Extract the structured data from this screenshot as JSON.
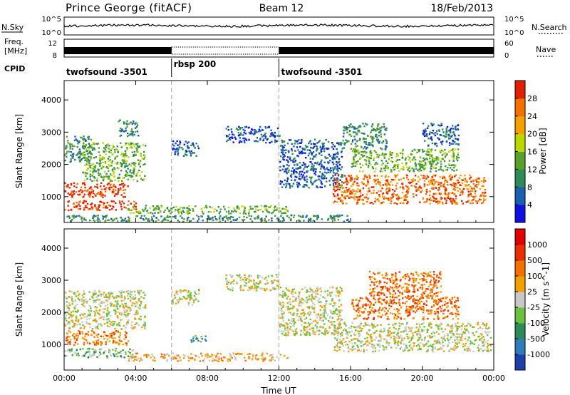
{
  "header": {
    "station": "Prince George (fitACF)",
    "beam": "Beam 12",
    "date": "18/Feb/2013"
  },
  "top_panels": {
    "nsky_label": "N.Sky",
    "nsky_ticks": [
      "10^5",
      "10^0"
    ],
    "nsearch_label": "N.Search",
    "nsearch_ticks": [
      "10^5",
      "10^0"
    ],
    "freq_label_1": "Freq.",
    "freq_label_2": "[MHz]",
    "freq_ticks": [
      "12",
      "8"
    ],
    "nave_label": "Nave",
    "nave_ticks": [
      "60",
      "0"
    ],
    "cpid_label": "CPID",
    "cpid_segments": [
      {
        "name": "twofsound -3501",
        "start_h": 0,
        "end_h": 6
      },
      {
        "name": "rbsp 200",
        "start_h": 6,
        "end_h": 12
      },
      {
        "name": "twofsound -3501",
        "start_h": 12,
        "end_h": 24
      }
    ]
  },
  "chart_data": [
    {
      "type": "heatmap",
      "title": "",
      "ylabel": "Slant Range [km]",
      "xlabel": "",
      "ylim": [
        200,
        4600
      ],
      "xlim_hours": [
        0,
        24
      ],
      "y_ticks": [
        "1000",
        "2000",
        "3000",
        "4000"
      ],
      "x_tick_hours": [
        0,
        4,
        8,
        12,
        16,
        20,
        24
      ],
      "colorbar": {
        "label": "Power [dB]",
        "ticks": [
          "4",
          "8",
          "12",
          "16",
          "20",
          "24",
          "28"
        ],
        "colors": [
          "#1010e0",
          "#1a5fb0",
          "#2e8b57",
          "#5aa02c",
          "#bdd800",
          "#f4a000",
          "#f07000",
          "#e02000"
        ]
      },
      "echo_regions": [
        {
          "t0": 0.0,
          "t1": 3.6,
          "r0": 1000,
          "r1": 1450,
          "level": 7
        },
        {
          "t0": 0.0,
          "t1": 4.0,
          "r0": 600,
          "r1": 900,
          "level": 7
        },
        {
          "t0": 0.0,
          "t1": 1.5,
          "r0": 2100,
          "r1": 2900,
          "level": 2
        },
        {
          "t0": 1.0,
          "t1": 4.5,
          "r0": 1500,
          "r1": 2700,
          "level": 3
        },
        {
          "t0": 3.0,
          "t1": 4.2,
          "r0": 2900,
          "r1": 3400,
          "level": 2
        },
        {
          "t0": 3.5,
          "t1": 12.5,
          "r0": 500,
          "r1": 750,
          "level": 3
        },
        {
          "t0": 0.0,
          "t1": 16.0,
          "r0": 250,
          "r1": 450,
          "level": 2
        },
        {
          "t0": 6.0,
          "t1": 7.5,
          "r0": 2250,
          "r1": 2750,
          "level": 1
        },
        {
          "t0": 9.0,
          "t1": 12.0,
          "r0": 2700,
          "r1": 3200,
          "level": 1
        },
        {
          "t0": 12.0,
          "t1": 15.5,
          "r0": 1300,
          "r1": 2800,
          "level": 1
        },
        {
          "t0": 15.0,
          "t1": 23.5,
          "r0": 800,
          "r1": 1700,
          "level": 6
        },
        {
          "t0": 16.0,
          "t1": 22.0,
          "r0": 1800,
          "r1": 2500,
          "level": 3
        },
        {
          "t0": 15.5,
          "t1": 18.0,
          "r0": 2500,
          "r1": 3300,
          "level": 2
        },
        {
          "t0": 20.0,
          "t1": 22.0,
          "r0": 2600,
          "r1": 3300,
          "level": 1
        }
      ]
    },
    {
      "type": "heatmap",
      "title": "",
      "ylabel": "Slant Range [km]",
      "xlabel": "Time UT",
      "ylim": [
        200,
        4600
      ],
      "xlim_hours": [
        0,
        24
      ],
      "y_ticks": [
        "1000",
        "2000",
        "3000",
        "4000"
      ],
      "x_tick_labels": [
        "00:00",
        "04:00",
        "08:00",
        "12:00",
        "16:00",
        "20:00",
        "00:00"
      ],
      "x_tick_hours": [
        0,
        4,
        8,
        12,
        16,
        20,
        24
      ],
      "colorbar": {
        "label": "Velocity [m s^-1]",
        "ticks": [
          "1000",
          "500",
          "100",
          "25",
          "-25",
          "-100",
          "-500",
          "-1000"
        ],
        "colors": [
          "#1c3fa8",
          "#2f7db8",
          "#2e8b57",
          "#6cc040",
          "#c8c8c8",
          "#f0a000",
          "#f07000",
          "#e83000",
          "#e00000"
        ]
      },
      "echo_regions": [
        {
          "t0": 0.0,
          "t1": 3.6,
          "r0": 1000,
          "r1": 1450,
          "level": 6
        },
        {
          "t0": 0.0,
          "t1": 4.0,
          "r0": 600,
          "r1": 900,
          "level": 3
        },
        {
          "t0": 0.0,
          "t1": 4.5,
          "r0": 1500,
          "r1": 2700,
          "level": 4
        },
        {
          "t0": 3.5,
          "t1": 12.5,
          "r0": 500,
          "r1": 750,
          "level": 5
        },
        {
          "t0": 6.0,
          "t1": 7.5,
          "r0": 2250,
          "r1": 2750,
          "level": 4
        },
        {
          "t0": 9.0,
          "t1": 12.0,
          "r0": 2700,
          "r1": 3200,
          "level": 4
        },
        {
          "t0": 12.0,
          "t1": 15.5,
          "r0": 1300,
          "r1": 2800,
          "level": 4
        },
        {
          "t0": 15.0,
          "t1": 23.8,
          "r0": 800,
          "r1": 1700,
          "level": 4
        },
        {
          "t0": 16.0,
          "t1": 22.0,
          "r0": 1800,
          "r1": 2500,
          "level": 6
        },
        {
          "t0": 17.0,
          "t1": 21.0,
          "r0": 2500,
          "r1": 3300,
          "level": 6
        },
        {
          "t0": 7.0,
          "t1": 8.0,
          "r0": 1100,
          "r1": 1300,
          "level": 2
        }
      ]
    }
  ]
}
